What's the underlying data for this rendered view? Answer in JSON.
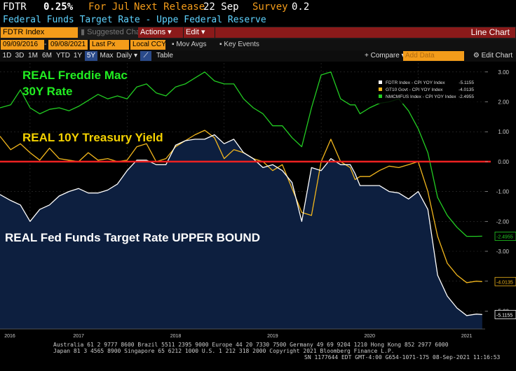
{
  "header": {
    "ticker": "FDTR",
    "value": "0.25%",
    "period": "For Jul",
    "next_release_label": "Next Release",
    "next_release_date": "22 Sep",
    "survey_label": "Survey",
    "survey_value": "0.2",
    "description": "Federal Funds Target Rate - Uppe Federal Reserve",
    "colors": {
      "ticker": "#ffffff",
      "value": "#ffffff",
      "label": "#f39c1a",
      "desc": "#5fd3ff"
    }
  },
  "toolbar": {
    "security_field": "FDTR Index",
    "suggested_charts": "Suggested Charts",
    "actions": "Actions",
    "edit": "Edit",
    "title_right": "Line Chart"
  },
  "params": {
    "start_date": "09/09/2016",
    "end_date": "09/08/2021",
    "price_field": "Last Px",
    "currency": "Local CCY",
    "mov_avgs": "Mov Avgs",
    "key_events": "Key Events"
  },
  "range_bar": {
    "ranges": [
      "1D",
      "3D",
      "1M",
      "6M",
      "YTD",
      "1Y",
      "5Y",
      "Max"
    ],
    "selected": "5Y",
    "frequency": "Daily",
    "table": "Table",
    "compare": "Compare",
    "add_data_placeholder": "Add Data",
    "edit_chart": "Edit Chart"
  },
  "chart_data": {
    "type": "line",
    "ylim": [
      -5.6,
      3.3
    ],
    "yticks": [
      "3.00",
      "2.00",
      "1.00",
      "0.00",
      "-1.00",
      "-2.00",
      "-3.00",
      "-4.00",
      "-5.00"
    ],
    "xticks": [
      "2016",
      "2017",
      "2018",
      "2019",
      "2020",
      "2021"
    ],
    "xlim": [
      2016.69,
      2021.69
    ],
    "zero_line": 0,
    "legend_position": "top-right",
    "legend": [
      {
        "name": "FDTR Index - CPI YOY Index",
        "value": "-5.1155",
        "color": "#ffffff"
      },
      {
        "name": "GT10 Govt - CPI YOY Index",
        "value": "-4.0135",
        "color": "#f2b61c"
      },
      {
        "name": "NMCMFUS Index - CPI YOY Index",
        "value": "-2.4955",
        "color": "#22cc22"
      }
    ],
    "annotations": [
      {
        "text": "REAL Freddie Mac\n30Y Rate",
        "color": "#22ee22"
      },
      {
        "text": "REAL 10Y Treasury Yield",
        "color": "#f5d200"
      },
      {
        "text": "REAL Fed Funds Target Rate UPPER BOUND",
        "color": "#ffffff"
      }
    ],
    "series": [
      {
        "name": "FDTR Index - CPI YOY Index",
        "color": "#ffffff",
        "fill": "#0d1f3f",
        "x": [
          2016.69,
          2016.8,
          2016.9,
          2017.0,
          2017.1,
          2017.2,
          2017.3,
          2017.4,
          2017.5,
          2017.6,
          2017.7,
          2017.8,
          2017.9,
          2018.0,
          2018.1,
          2018.2,
          2018.3,
          2018.4,
          2018.5,
          2018.6,
          2018.7,
          2018.8,
          2018.9,
          2019.0,
          2019.1,
          2019.2,
          2019.3,
          2019.4,
          2019.5,
          2019.6,
          2019.7,
          2019.8,
          2019.9,
          2020.0,
          2020.1,
          2020.2,
          2020.3,
          2020.35,
          2020.4,
          2020.5,
          2020.6,
          2020.7,
          2020.8,
          2020.9,
          2021.0,
          2021.1,
          2021.2,
          2021.3,
          2021.4,
          2021.5,
          2021.6,
          2021.66
        ],
        "y": [
          -1.1,
          -1.3,
          -1.45,
          -2.0,
          -1.6,
          -1.45,
          -1.15,
          -1.0,
          -0.9,
          -1.05,
          -1.05,
          -0.95,
          -0.75,
          -0.3,
          0.05,
          0.05,
          -0.1,
          -0.1,
          0.55,
          0.7,
          0.75,
          0.75,
          0.9,
          0.6,
          0.75,
          0.3,
          0.1,
          -0.2,
          -0.1,
          -0.3,
          -0.7,
          -2.0,
          -0.2,
          -0.3,
          0.1,
          -0.1,
          -0.1,
          -0.4,
          -0.8,
          -0.8,
          -0.8,
          -1.0,
          -1.05,
          -1.25,
          -1.0,
          -1.6,
          -3.8,
          -4.5,
          -4.9,
          -5.15,
          -5.1,
          -5.1155
        ]
      },
      {
        "name": "GT10 Govt - CPI YOY Index",
        "color": "#f2b61c",
        "x": [
          2016.69,
          2016.8,
          2016.9,
          2017.0,
          2017.1,
          2017.2,
          2017.3,
          2017.4,
          2017.5,
          2017.6,
          2017.7,
          2017.8,
          2017.9,
          2018.0,
          2018.1,
          2018.2,
          2018.3,
          2018.4,
          2018.5,
          2018.6,
          2018.7,
          2018.8,
          2018.9,
          2019.0,
          2019.1,
          2019.2,
          2019.3,
          2019.4,
          2019.5,
          2019.6,
          2019.7,
          2019.8,
          2019.9,
          2020.0,
          2020.1,
          2020.2,
          2020.3,
          2020.35,
          2020.4,
          2020.5,
          2020.6,
          2020.7,
          2020.8,
          2020.9,
          2021.0,
          2021.1,
          2021.2,
          2021.3,
          2021.4,
          2021.5,
          2021.6,
          2021.66
        ],
        "y": [
          0.85,
          0.4,
          0.6,
          0.3,
          0.05,
          0.45,
          0.1,
          0.05,
          0.0,
          0.3,
          0.05,
          0.1,
          0.0,
          0.05,
          0.5,
          0.6,
          0.0,
          0.1,
          0.5,
          0.7,
          0.9,
          1.05,
          0.8,
          0.1,
          0.4,
          0.3,
          0.1,
          0.0,
          -0.3,
          -0.1,
          -0.9,
          -1.7,
          -1.8,
          0.0,
          0.75,
          0.0,
          -0.2,
          -0.6,
          -0.5,
          -0.5,
          -0.3,
          -0.15,
          -0.2,
          -0.1,
          0.0,
          -1.0,
          -2.5,
          -3.4,
          -3.8,
          -4.05,
          -4.0,
          -4.0135
        ]
      },
      {
        "name": "NMCMFUS Index - CPI YOY Index",
        "color": "#22cc22",
        "x": [
          2016.69,
          2016.8,
          2016.9,
          2017.0,
          2017.1,
          2017.2,
          2017.3,
          2017.4,
          2017.5,
          2017.6,
          2017.7,
          2017.8,
          2017.9,
          2018.0,
          2018.1,
          2018.2,
          2018.3,
          2018.4,
          2018.5,
          2018.6,
          2018.7,
          2018.8,
          2018.9,
          2019.0,
          2019.1,
          2019.2,
          2019.3,
          2019.4,
          2019.5,
          2019.6,
          2019.7,
          2019.8,
          2019.9,
          2020.0,
          2020.1,
          2020.2,
          2020.3,
          2020.35,
          2020.4,
          2020.5,
          2020.6,
          2020.7,
          2020.8,
          2020.9,
          2021.0,
          2021.1,
          2021.2,
          2021.3,
          2021.4,
          2021.5,
          2021.6,
          2021.66
        ],
        "y": [
          1.8,
          1.9,
          2.4,
          1.8,
          1.6,
          1.75,
          1.8,
          1.7,
          1.85,
          2.05,
          2.25,
          2.1,
          2.2,
          2.1,
          2.5,
          2.6,
          2.3,
          2.2,
          2.5,
          2.6,
          2.8,
          3.0,
          2.7,
          2.6,
          2.6,
          2.1,
          1.8,
          1.6,
          1.2,
          1.2,
          0.8,
          0.5,
          1.8,
          2.9,
          3.0,
          2.1,
          1.9,
          1.9,
          1.6,
          1.8,
          1.95,
          2.0,
          2.1,
          1.7,
          1.1,
          0.3,
          -1.2,
          -1.8,
          -2.2,
          -2.5,
          -2.5,
          -2.4955
        ]
      }
    ]
  },
  "footer": {
    "line1": "Australia 61 2 9777 8600  Brazil 5511 2395 9000  Europe 44 20 7330 7500  Germany 49 69 9204 1210  Hong Kong 852 2977 6000",
    "line2": "Japan 81 3 4565 8900        Singapore 65 6212 1000        U.S. 1 212 318 2000        Copyright 2021 Bloomberg Finance L.P.",
    "line3": "SN 1177644 EDT  GMT-4:00 G654-1071-175 08-Sep-2021 11:16:53"
  }
}
